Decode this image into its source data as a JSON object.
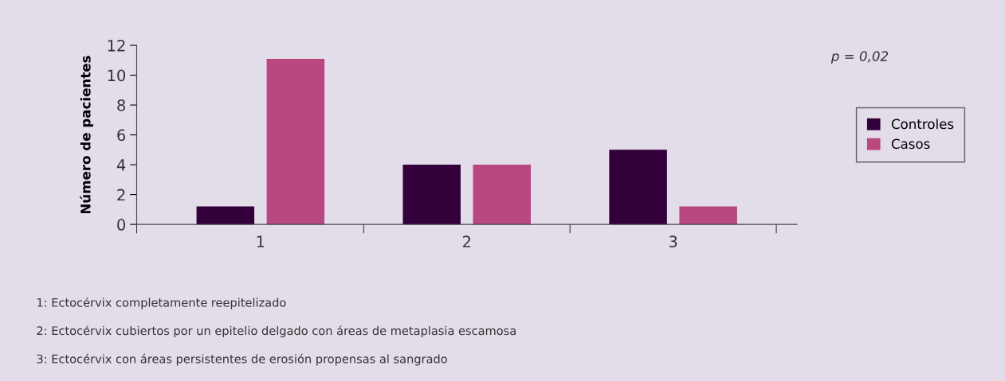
{
  "chart_data": {
    "type": "bar",
    "ylabel": "Número de pacientes",
    "categories": [
      "1",
      "2",
      "3"
    ],
    "series": [
      {
        "name": "Controles",
        "color": "#33003c",
        "values": [
          1.2,
          4,
          5
        ]
      },
      {
        "name": "Casos",
        "color": "#b94880",
        "values": [
          11.1,
          4,
          1.2
        ]
      }
    ],
    "ylim": [
      0,
      12
    ],
    "yticks": [
      0,
      2,
      4,
      6,
      8,
      10,
      12
    ],
    "grid": false,
    "legend": "right",
    "annotations": [
      "p = 0,02",
      "1: Ectocérvix completamente reepitelizado",
      "2: Ectocérvix cubiertos por un epitelio delgado con áreas de metaplasia escamosa",
      "3: Ectocérvix con áreas persistentes de erosión propensas al sangrado"
    ]
  }
}
